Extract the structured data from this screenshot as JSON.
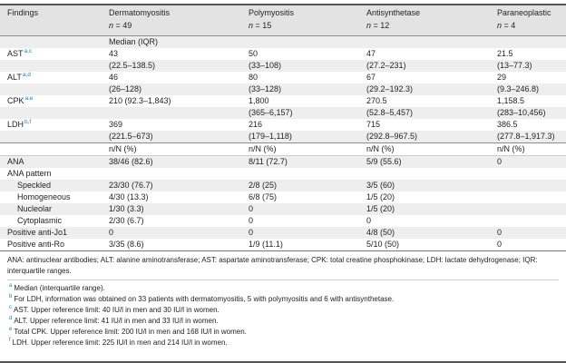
{
  "page": {
    "accent_color": "#1e7fb8",
    "stripe_color": "#eeeeee",
    "header_bg": "#e3e3e3"
  },
  "header": {
    "findings": "Findings",
    "groups": [
      {
        "name": "Dermatomyositis",
        "n_var": "n",
        "n_eq": " = 49"
      },
      {
        "name": "Polymyositis",
        "n_var": "n",
        "n_eq": " = 15"
      },
      {
        "name": "Antisynthetase",
        "n_var": "n",
        "n_eq": " = 12"
      },
      {
        "name": "Paraneoplastic",
        "n_var": "n",
        "n_eq": " = 4"
      }
    ]
  },
  "median_section": {
    "label": "Median (IQR)",
    "rows": [
      {
        "name": "AST",
        "sup": "a,c",
        "values": [
          "43",
          "50",
          "47",
          "21.5"
        ],
        "iqr": [
          "(22.5–138.5)",
          "(33–108)",
          "(27.2–231)",
          "(13–77.3)"
        ]
      },
      {
        "name": "ALT",
        "sup": "a,d",
        "values": [
          "46",
          "80",
          "67",
          "29"
        ],
        "iqr": [
          "(26–128)",
          "(33–128)",
          "(29.2–192.3)",
          "(9.3–246.8)"
        ]
      },
      {
        "name": "CPK",
        "sup": "a,e",
        "values": [
          "210 (92.3–1,843)",
          "1,800",
          "270.5",
          "1,158.5"
        ],
        "iqr": [
          "",
          "(365–6,157)",
          "(52.8–5,457)",
          "(283–10,456)"
        ]
      },
      {
        "name": "LDH",
        "sup": "b,f",
        "values": [
          "369",
          "216",
          "715",
          "386.5"
        ],
        "iqr": [
          "(221.5–673)",
          "(179–1,118)",
          "(292.8–967.5)",
          "(277.8–1,917.3)"
        ]
      }
    ]
  },
  "nn_section": {
    "label": "n/N (%)",
    "rows": [
      {
        "name": "ANA",
        "values": [
          "38/46 (82.6)",
          "8/11 (72.7)",
          "5/9 (55.6)",
          "0"
        ]
      },
      {
        "name": "ANA pattern",
        "values": [
          "",
          "",
          "",
          ""
        ]
      },
      {
        "name": "Speckled",
        "values": [
          "23/30 (76.7)",
          "2/8 (25)",
          "3/5 (60)",
          ""
        ]
      },
      {
        "name": "Homogeneous",
        "values": [
          "4/30 (13.3)",
          "6/8 (75)",
          "1/5 (20)",
          ""
        ]
      },
      {
        "name": "Nucleolar",
        "values": [
          "1/30 (3.3)",
          "0",
          "1/5 (20)",
          ""
        ]
      },
      {
        "name": "Cytoplasmic",
        "values": [
          "2/30 (6.7)",
          "0",
          "0",
          ""
        ]
      },
      {
        "name": "Positive anti-Jo1",
        "values": [
          "0",
          "0",
          "4/8 (50)",
          "0"
        ]
      },
      {
        "name": "Positive anti-Ro",
        "values": [
          "3/35 (8.6)",
          "1/9 (11.1)",
          "5/10 (50)",
          "0"
        ]
      }
    ]
  },
  "footnotes": {
    "abbreviations": "ANA: antinuclear antibodies; ALT: alanine aminotransferase; AST: aspartate aminotransferase; CPK: total creatine phosphokinase; LDH: lactate dehydrogenase; IQR: interquartile ranges.",
    "items": [
      {
        "sup": "a",
        "text": "Median (interquartile range)."
      },
      {
        "sup": "b",
        "text": "For LDH, information was obtained on 33 patients with dermatomyositis, 5 with polymyositis and 6 with antisynthetase."
      },
      {
        "sup": "c",
        "text": "AST. Upper reference limit: 40 IU/l in men and 30 IU/l in women."
      },
      {
        "sup": "d",
        "text": "ALT. Upper reference limit: 41 IU/l in men and 33 IU/l in women."
      },
      {
        "sup": "e",
        "text": "Total CPK. Upper reference limit: 200 IU/l in men and 168 IU/l in women."
      },
      {
        "sup": "f",
        "text": "LDH. Upper reference limit: 225 IU/l in men and 214 IU/l in women."
      }
    ]
  }
}
